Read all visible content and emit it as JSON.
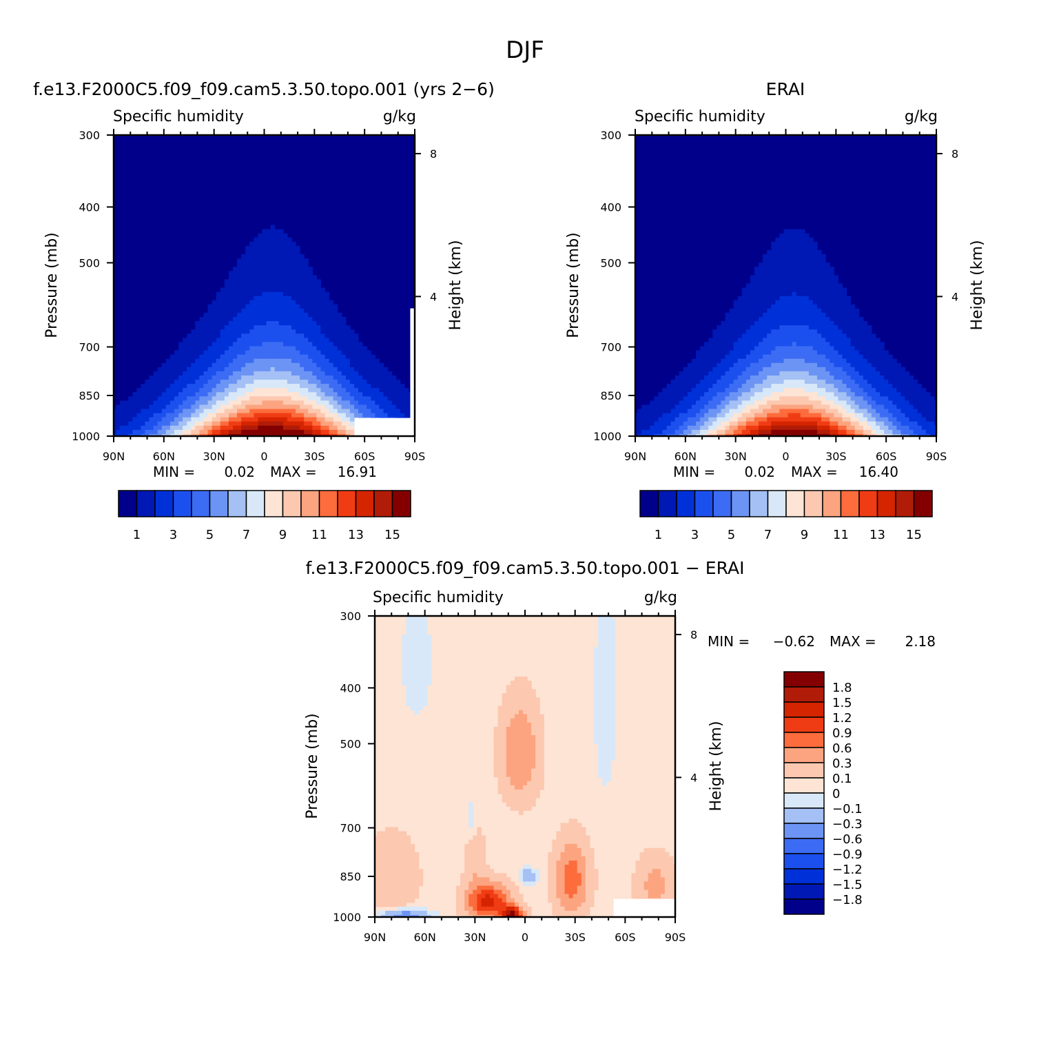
{
  "figure_title": "DJF",
  "chart_data": [
    {
      "type": "contour",
      "panel": "model",
      "title": "f.e13.F2000C5.f09_f09.cam5.3.50.topo.001 (yrs 2−6)",
      "variable": "Specific humidity",
      "units": "g/kg",
      "xlabel": "",
      "ylabel": "Pressure (mb)",
      "y2label": "Height (km)",
      "x_ticks": [
        "90N",
        "60N",
        "30N",
        "0",
        "30S",
        "60S",
        "90S"
      ],
      "x_values": [
        90,
        60,
        30,
        0,
        -30,
        -60,
        -90
      ],
      "y_ticks": [
        "300",
        "400",
        "500",
        "700",
        "850",
        "1000"
      ],
      "y_values": [
        300,
        400,
        500,
        700,
        850,
        1000
      ],
      "y2_ticks": [
        "8",
        "4"
      ],
      "min_label": "MIN =",
      "min_value": "0.02",
      "max_label": "MAX =",
      "max_value": "16.91",
      "peak_value": 16.91,
      "colorbar_labels": [
        "1",
        "3",
        "5",
        "7",
        "9",
        "11",
        "13",
        "15"
      ],
      "colors": [
        "#00008b",
        "#0018b4",
        "#0030d8",
        "#1c50ee",
        "#3c6cf4",
        "#6c94f4",
        "#a4c0f4",
        "#d8e8f8",
        "#fde4d4",
        "#fcc8b0",
        "#fca480",
        "#fc6c3c",
        "#f03c14",
        "#d42400",
        "#b01c08",
        "#840000"
      ],
      "levels": [
        0,
        1,
        2,
        3,
        4,
        5,
        6,
        7,
        8,
        9,
        10,
        11,
        12,
        13,
        14,
        15
      ]
    },
    {
      "type": "contour",
      "panel": "obs",
      "title": "ERAI",
      "variable": "Specific humidity",
      "units": "g/kg",
      "xlabel": "",
      "ylabel": "Pressure (mb)",
      "y2label": "Height (km)",
      "x_ticks": [
        "90N",
        "60N",
        "30N",
        "0",
        "30S",
        "60S",
        "90S"
      ],
      "x_values": [
        90,
        60,
        30,
        0,
        -30,
        -60,
        -90
      ],
      "y_ticks": [
        "300",
        "400",
        "500",
        "700",
        "850",
        "1000"
      ],
      "y_values": [
        300,
        400,
        500,
        700,
        850,
        1000
      ],
      "y2_ticks": [
        "8",
        "4"
      ],
      "min_label": "MIN =",
      "min_value": "0.02",
      "max_label": "MAX =",
      "max_value": "16.40",
      "peak_value": 16.4,
      "colorbar_labels": [
        "1",
        "3",
        "5",
        "7",
        "9",
        "11",
        "13",
        "15"
      ],
      "colors": [
        "#00008b",
        "#0018b4",
        "#0030d8",
        "#1c50ee",
        "#3c6cf4",
        "#6c94f4",
        "#a4c0f4",
        "#d8e8f8",
        "#fde4d4",
        "#fcc8b0",
        "#fca480",
        "#fc6c3c",
        "#f03c14",
        "#d42400",
        "#b01c08",
        "#840000"
      ],
      "levels": [
        0,
        1,
        2,
        3,
        4,
        5,
        6,
        7,
        8,
        9,
        10,
        11,
        12,
        13,
        14,
        15
      ]
    },
    {
      "type": "contour",
      "panel": "difference",
      "title": "f.e13.F2000C5.f09_f09.cam5.3.50.topo.001 − ERAI",
      "variable": "Specific humidity",
      "units": "g/kg",
      "xlabel": "",
      "ylabel": "Pressure (mb)",
      "y2label": "Height (km)",
      "x_ticks": [
        "90N",
        "60N",
        "30N",
        "0",
        "30S",
        "60S",
        "90S"
      ],
      "x_values": [
        90,
        60,
        30,
        0,
        -30,
        -60,
        -90
      ],
      "y_ticks": [
        "300",
        "400",
        "500",
        "700",
        "850",
        "1000"
      ],
      "y_values": [
        300,
        400,
        500,
        700,
        850,
        1000
      ],
      "y2_ticks": [
        "8",
        "4"
      ],
      "min_label": "MIN =",
      "min_value": "−0.62",
      "max_label": "MAX =",
      "max_value": "2.18",
      "colorbar_labels": [
        "1.8",
        "1.5",
        "1.2",
        "0.9",
        "0.6",
        "0.3",
        "0.1",
        "0",
        "−0.1",
        "−0.3",
        "−0.6",
        "−0.9",
        "−1.2",
        "−1.5",
        "−1.8"
      ],
      "colors": [
        "#840000",
        "#b01c08",
        "#d42400",
        "#f03c14",
        "#fc6c3c",
        "#fca480",
        "#fcc8b0",
        "#fde4d4",
        "#d8e8f8",
        "#a4c0f4",
        "#6c94f4",
        "#3c6cf4",
        "#1c50ee",
        "#0030d8",
        "#0018b4",
        "#00008b"
      ]
    }
  ]
}
